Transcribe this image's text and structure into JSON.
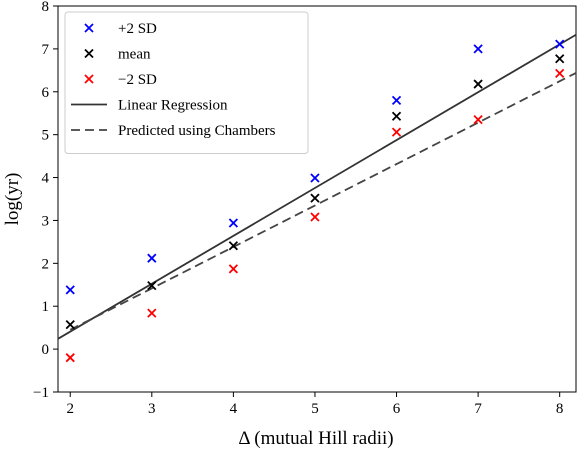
{
  "chart_data": {
    "type": "scatter",
    "xlabel": "Δ (mutual Hill radii)",
    "ylabel": "log(yr)",
    "xlim": [
      1.85,
      8.2
    ],
    "ylim": [
      -1,
      8
    ],
    "xticks": [
      "2",
      "3",
      "4",
      "5",
      "6",
      "7",
      "8"
    ],
    "yticks": [
      "−1",
      "0",
      "1",
      "2",
      "3",
      "4",
      "5",
      "6",
      "7",
      "8"
    ],
    "grid": false,
    "legend_position": "top-left",
    "series": [
      {
        "name": "+2 SD",
        "kind": "marker",
        "color": "#0000ff",
        "x": [
          2,
          3,
          4,
          5,
          6,
          7,
          8
        ],
        "y": [
          1.38,
          2.12,
          2.94,
          3.99,
          5.8,
          7.0,
          7.11
        ]
      },
      {
        "name": "mean",
        "kind": "marker",
        "color": "#000000",
        "x": [
          2,
          3,
          4,
          5,
          6,
          7,
          8
        ],
        "y": [
          0.57,
          1.48,
          2.41,
          3.52,
          5.43,
          6.18,
          6.77
        ]
      },
      {
        "name": "−2 SD",
        "kind": "marker",
        "color": "#ff0000",
        "x": [
          2,
          3,
          4,
          5,
          6,
          7,
          8
        ],
        "y": [
          -0.2,
          0.84,
          1.87,
          3.08,
          5.06,
          5.35,
          6.43
        ]
      },
      {
        "name": "Linear Regression",
        "kind": "line",
        "dash": "solid",
        "color": "#333333",
        "x": [
          1.85,
          8.2
        ],
        "y": [
          0.24,
          7.33
        ]
      },
      {
        "name": "Predicted using Chambers",
        "kind": "line",
        "dash": "dashed",
        "color": "#444444",
        "x": [
          2.0,
          8.2
        ],
        "y": [
          0.45,
          6.44
        ]
      }
    ]
  }
}
